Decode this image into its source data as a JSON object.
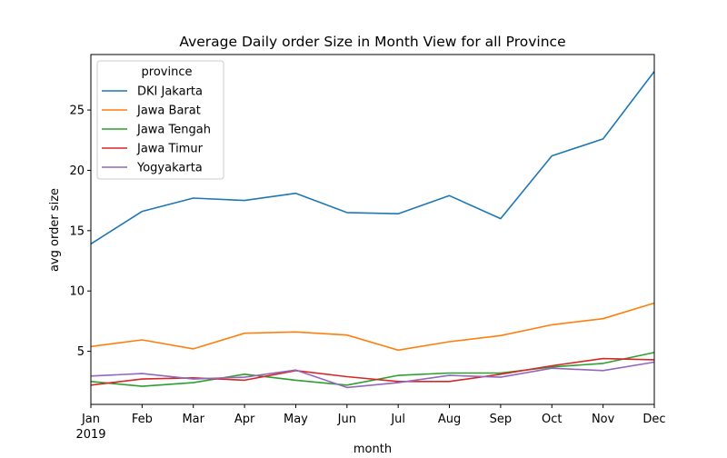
{
  "chart_data": {
    "type": "line",
    "title": "Average Daily order Size in Month View for all Province",
    "xlabel": "month",
    "ylabel": "avg order size",
    "categories": [
      "Jan",
      "Feb",
      "Mar",
      "Apr",
      "May",
      "Jun",
      "Jul",
      "Aug",
      "Sep",
      "Oct",
      "Nov",
      "Dec"
    ],
    "x_year_label": "2019",
    "yticks": [
      5,
      10,
      15,
      20,
      25
    ],
    "ylim": [
      0.6,
      29.6
    ],
    "grid": false,
    "legend": {
      "title": "province",
      "placement": "top-left"
    },
    "series": [
      {
        "name": "DKI Jakarta",
        "color": "#1f77b4",
        "values": [
          13.9,
          16.6,
          17.7,
          17.5,
          18.1,
          16.5,
          16.4,
          17.9,
          16.0,
          21.2,
          22.6,
          28.2
        ]
      },
      {
        "name": "Jawa Barat",
        "color": "#ff7f0e",
        "values": [
          5.4,
          5.95,
          5.2,
          6.5,
          6.6,
          6.35,
          5.1,
          5.8,
          6.3,
          7.2,
          7.7,
          9.0
        ]
      },
      {
        "name": "Jawa Tengah",
        "color": "#2ca02c",
        "values": [
          2.5,
          2.1,
          2.4,
          3.1,
          2.6,
          2.2,
          3.0,
          3.2,
          3.2,
          3.7,
          4.0,
          4.9
        ]
      },
      {
        "name": "Jawa Timur",
        "color": "#d62728",
        "values": [
          2.2,
          2.7,
          2.8,
          2.6,
          3.4,
          2.9,
          2.5,
          2.5,
          3.1,
          3.8,
          4.4,
          4.3
        ]
      },
      {
        "name": "Yogyakarta",
        "color": "#9467bd",
        "values": [
          2.95,
          3.15,
          2.7,
          2.85,
          3.45,
          2.0,
          2.4,
          3.0,
          2.85,
          3.6,
          3.4,
          4.1
        ]
      }
    ]
  }
}
